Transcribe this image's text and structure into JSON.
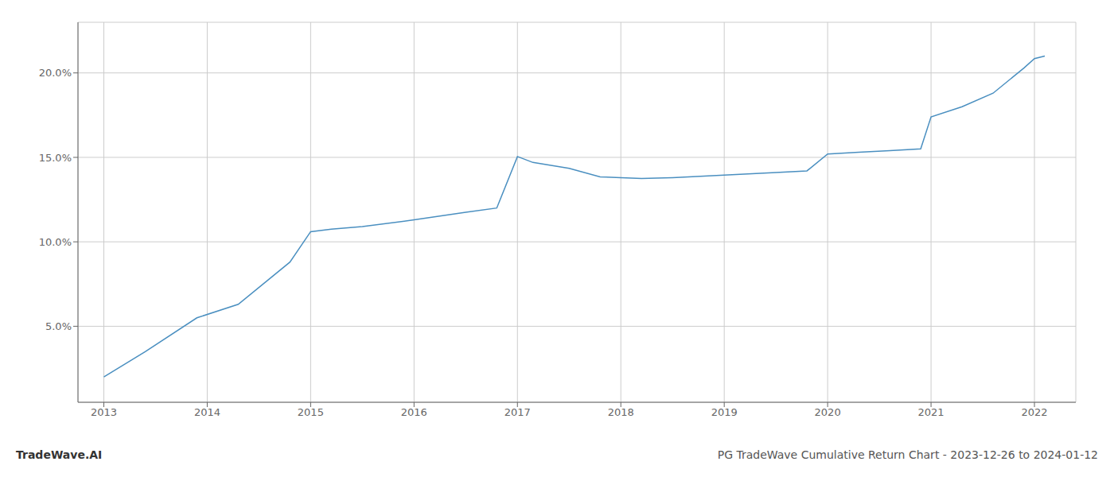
{
  "chart_data": {
    "type": "line",
    "x": [
      2013.0,
      2013.4,
      2013.9,
      2014.3,
      2014.8,
      2015.0,
      2015.2,
      2015.5,
      2016.0,
      2016.5,
      2016.8,
      2017.0,
      2017.15,
      2017.5,
      2017.8,
      2018.0,
      2018.2,
      2018.5,
      2019.0,
      2019.5,
      2019.8,
      2020.0,
      2020.3,
      2020.6,
      2020.9,
      2021.0,
      2021.3,
      2021.6,
      2021.9,
      2022.0,
      2022.1
    ],
    "values": [
      2.0,
      3.5,
      5.5,
      6.3,
      8.8,
      10.6,
      10.75,
      10.9,
      11.3,
      11.75,
      12.0,
      15.05,
      14.7,
      14.35,
      13.85,
      13.8,
      13.75,
      13.8,
      13.95,
      14.1,
      14.2,
      15.2,
      15.3,
      15.4,
      15.5,
      17.4,
      18.0,
      18.8,
      20.3,
      20.85,
      21.0
    ],
    "color": "#4a8fc0",
    "xlim": [
      2012.75,
      2022.4
    ],
    "ylim": [
      0.5,
      23.0
    ],
    "xticks": [
      2013,
      2014,
      2015,
      2016,
      2017,
      2018,
      2019,
      2020,
      2021,
      2022
    ],
    "yticks": [
      {
        "value": 5.0,
        "label": "5.0%"
      },
      {
        "value": 10.0,
        "label": "10.0%"
      },
      {
        "value": 15.0,
        "label": "15.0%"
      },
      {
        "value": 20.0,
        "label": "20.0%"
      }
    ],
    "grid": true,
    "annotations": [
      "TradeWave.AI",
      "PG TradeWave Cumulative Return Chart - 2023-12-26 to 2024-01-12"
    ]
  }
}
